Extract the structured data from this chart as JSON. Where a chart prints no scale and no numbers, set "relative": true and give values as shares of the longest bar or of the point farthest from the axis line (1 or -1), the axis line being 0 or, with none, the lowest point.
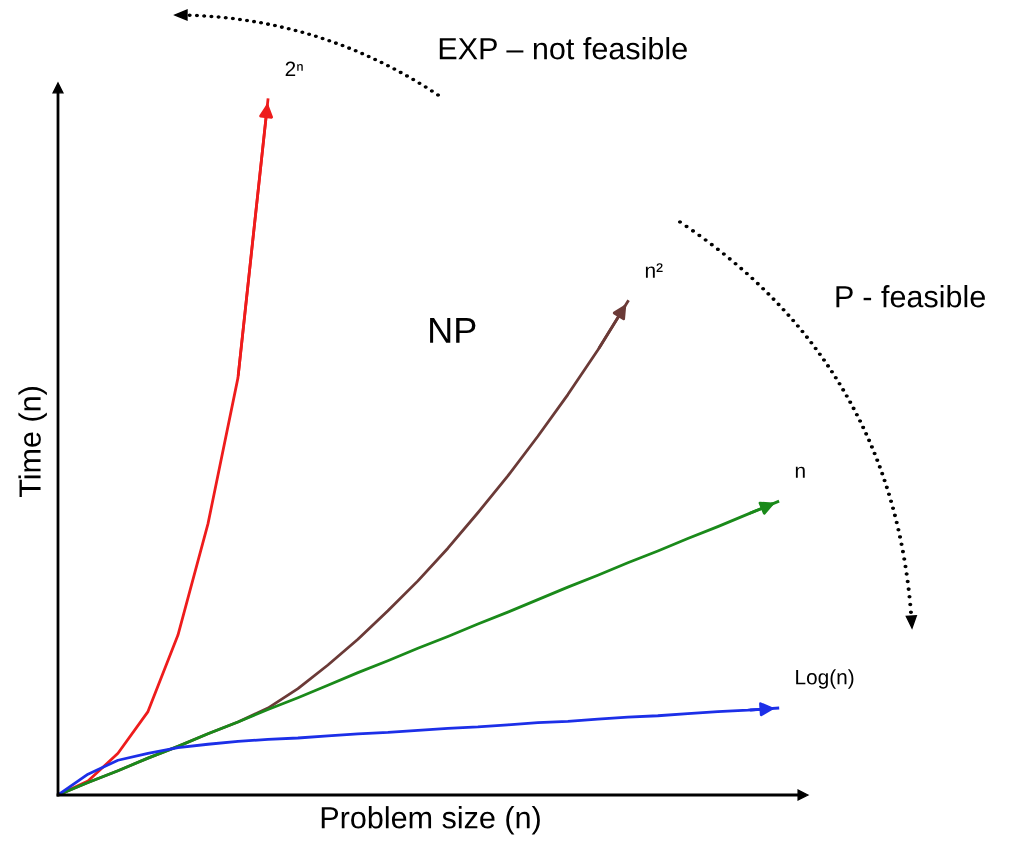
{
  "chart_data": {
    "type": "line",
    "relative": true,
    "xlabel": "Problem size (n)",
    "ylabel": "Time (n)",
    "categories": [
      null,
      null,
      null,
      null,
      null,
      null,
      null,
      null,
      null,
      null,
      null,
      null,
      null,
      null,
      null,
      null,
      null,
      null,
      null,
      null,
      null,
      null,
      null,
      null,
      null
    ],
    "series": [
      {
        "name": "2ⁿ",
        "color": "#ee1c1c",
        "values": [
          0,
          0.02,
          0.06,
          0.12,
          0.23,
          0.39,
          0.6,
          1.0,
          null,
          null,
          null,
          null,
          null,
          null,
          null,
          null,
          null,
          null,
          null,
          null,
          null,
          null,
          null,
          null,
          null
        ]
      },
      {
        "name": "n²",
        "color": "#6b3a37",
        "values": [
          0,
          0.018,
          0.035,
          0.053,
          0.07,
          0.088,
          0.105,
          0.125,
          0.153,
          0.187,
          0.224,
          0.265,
          0.308,
          0.355,
          0.406,
          0.459,
          0.516,
          0.576,
          0.64,
          0.71,
          null,
          null,
          null,
          null,
          null
        ]
      },
      {
        "name": "n",
        "color": "#1a8a1a",
        "values": [
          0,
          0.018,
          0.035,
          0.053,
          0.07,
          0.088,
          0.105,
          0.123,
          0.14,
          0.158,
          0.176,
          0.193,
          0.211,
          0.228,
          0.246,
          0.263,
          0.281,
          0.299,
          0.316,
          0.334,
          0.351,
          0.369,
          0.386,
          0.404,
          0.422
        ]
      },
      {
        "name": "Log(n)",
        "color": "#1c2fe8",
        "values": [
          0,
          0.03,
          0.05,
          0.06,
          0.068,
          0.073,
          0.077,
          0.08,
          0.082,
          0.085,
          0.088,
          0.09,
          0.093,
          0.096,
          0.098,
          0.101,
          0.104,
          0.106,
          0.109,
          0.112,
          0.114,
          0.117,
          0.12,
          0.122,
          0.125
        ]
      }
    ],
    "annotations": [
      "EXP – not feasible",
      "NP",
      "P - feasible"
    ],
    "legend": false,
    "marker": "none",
    "line_style": "solid"
  }
}
